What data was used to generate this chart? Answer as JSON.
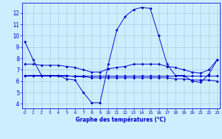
{
  "title": "Graphe des températures (°C)",
  "bg_color": "#cceeff",
  "grid_color": "#aaccdd",
  "line_color": "#0000cc",
  "x_ticks": [
    0,
    1,
    2,
    3,
    4,
    5,
    6,
    7,
    8,
    9,
    10,
    11,
    12,
    13,
    14,
    15,
    16,
    17,
    18,
    19,
    20,
    21,
    22,
    23
  ],
  "y_ticks": [
    4,
    5,
    6,
    7,
    8,
    9,
    10,
    11,
    12
  ],
  "xlim": [
    -0.3,
    23.3
  ],
  "ylim": [
    3.6,
    12.9
  ],
  "series": [
    {
      "x": [
        0,
        1,
        2,
        3,
        4,
        5,
        6,
        7,
        8,
        9,
        10,
        11,
        12,
        13,
        14,
        15,
        16,
        17,
        18,
        19,
        20,
        21,
        22,
        23
      ],
      "y": [
        9.5,
        7.9,
        6.5,
        6.5,
        6.5,
        6.2,
        6.1,
        5.0,
        4.1,
        4.1,
        7.5,
        10.5,
        11.7,
        12.3,
        12.5,
        12.4,
        10.0,
        7.5,
        6.5,
        6.5,
        6.0,
        5.9,
        6.6,
        7.9
      ]
    },
    {
      "x": [
        0,
        1,
        2,
        3,
        4,
        5,
        6,
        7,
        8,
        9,
        10,
        11,
        12,
        13,
        14,
        15,
        16,
        17,
        18,
        19,
        20,
        21,
        22,
        23
      ],
      "y": [
        6.5,
        6.5,
        6.5,
        6.5,
        6.5,
        6.5,
        6.5,
        6.5,
        6.5,
        6.5,
        6.5,
        6.5,
        6.5,
        6.5,
        6.5,
        6.5,
        6.5,
        6.5,
        6.5,
        6.5,
        6.5,
        6.5,
        6.5,
        6.5
      ]
    },
    {
      "x": [
        0,
        1,
        2,
        3,
        4,
        5,
        6,
        7,
        8,
        9,
        10,
        11,
        12,
        13,
        14,
        15,
        16,
        17,
        18,
        19,
        20,
        21,
        22,
        23
      ],
      "y": [
        6.5,
        6.5,
        6.5,
        6.5,
        6.5,
        6.5,
        6.4,
        6.4,
        6.3,
        6.3,
        6.3,
        6.3,
        6.3,
        6.3,
        6.3,
        6.3,
        6.3,
        6.3,
        6.2,
        6.2,
        6.1,
        6.1,
        6.1,
        6.0
      ]
    },
    {
      "x": [
        0,
        1,
        2,
        3,
        4,
        5,
        6,
        7,
        8,
        9,
        10,
        11,
        12,
        13,
        14,
        15,
        16,
        17,
        18,
        19,
        20,
        21,
        22,
        23
      ],
      "y": [
        7.5,
        7.5,
        7.4,
        7.4,
        7.4,
        7.3,
        7.2,
        7.0,
        6.8,
        6.8,
        7.1,
        7.2,
        7.3,
        7.5,
        7.5,
        7.5,
        7.5,
        7.3,
        7.2,
        7.0,
        6.8,
        6.7,
        7.0,
        7.9
      ]
    }
  ]
}
